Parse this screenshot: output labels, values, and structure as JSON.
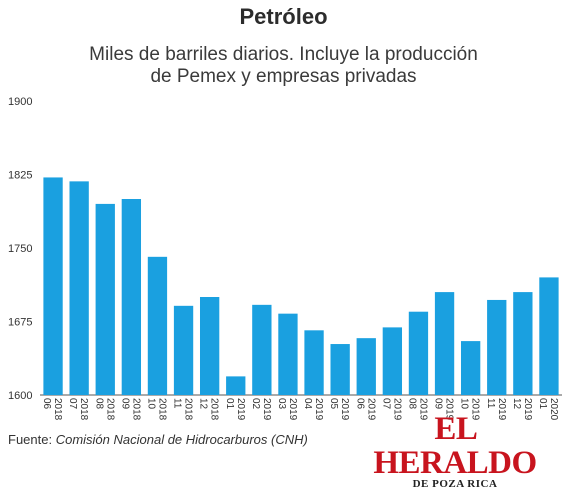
{
  "chart_data": {
    "type": "bar",
    "title": "Petróleo",
    "subtitle_lines": [
      "Miles de barriles diarios. Incluye la producción",
      "de Pemex y empresas privadas"
    ],
    "xlabel": "",
    "ylabel": "",
    "ylim": [
      1600,
      1900
    ],
    "yticks": [
      1600,
      1675,
      1750,
      1825,
      1900
    ],
    "grid": false,
    "bar_color": "#1aa0e0",
    "categories": [
      {
        "year": "2018",
        "month": "06"
      },
      {
        "year": "2018",
        "month": "07"
      },
      {
        "year": "2018",
        "month": "08"
      },
      {
        "year": "2018",
        "month": "09"
      },
      {
        "year": "2018",
        "month": "10"
      },
      {
        "year": "2018",
        "month": "11"
      },
      {
        "year": "2018",
        "month": "12"
      },
      {
        "year": "2019",
        "month": "01"
      },
      {
        "year": "2019",
        "month": "02"
      },
      {
        "year": "2019",
        "month": "03"
      },
      {
        "year": "2019",
        "month": "04"
      },
      {
        "year": "2019",
        "month": "05"
      },
      {
        "year": "2019",
        "month": "06"
      },
      {
        "year": "2019",
        "month": "07"
      },
      {
        "year": "2019",
        "month": "08"
      },
      {
        "year": "2019",
        "month": "09"
      },
      {
        "year": "2019",
        "month": "10"
      },
      {
        "year": "2019",
        "month": "11"
      },
      {
        "year": "2019",
        "month": "12"
      },
      {
        "year": "2020",
        "month": "01"
      }
    ],
    "values": [
      1822,
      1818,
      1795,
      1800,
      1741,
      1691,
      1700,
      1619,
      1692,
      1683,
      1666,
      1652,
      1658,
      1669,
      1685,
      1705,
      1655,
      1697,
      1705,
      1720
    ]
  },
  "footer": {
    "source_label": "Fuente: ",
    "source_name": "Comisión Nacional de Hidrocarburos (CNH)"
  },
  "brand": {
    "name_first": "EL",
    "name_second": "HERALDO",
    "sub": "DE POZA RICA"
  }
}
